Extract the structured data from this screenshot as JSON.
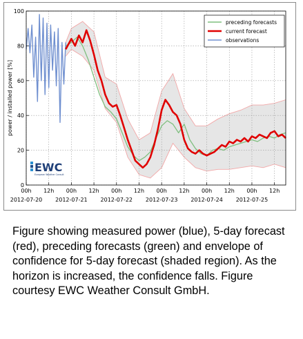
{
  "chart_data": {
    "type": "line",
    "ylabel": "power / installed power [%]",
    "ylim": [
      0,
      100
    ],
    "yticks": [
      0,
      20,
      40,
      60,
      80,
      100
    ],
    "xlim": [
      "2012-07-20T00:00",
      "2012-07-25T18:00"
    ],
    "xticks": [
      {
        "t": "2012-07-20T00:00",
        "label": "00h"
      },
      {
        "t": "2012-07-20T12:00",
        "label": "12h"
      },
      {
        "t": "2012-07-21T00:00",
        "label": "00h"
      },
      {
        "t": "2012-07-21T12:00",
        "label": "12h"
      },
      {
        "t": "2012-07-22T00:00",
        "label": "00h"
      },
      {
        "t": "2012-07-22T12:00",
        "label": "12h"
      },
      {
        "t": "2012-07-23T00:00",
        "label": "00h"
      },
      {
        "t": "2012-07-23T12:00",
        "label": "12h"
      },
      {
        "t": "2012-07-24T00:00",
        "label": "00h"
      },
      {
        "t": "2012-07-24T12:00",
        "label": "12h"
      },
      {
        "t": "2012-07-25T00:00",
        "label": "00h"
      },
      {
        "t": "2012-07-25T12:00",
        "label": "12h"
      }
    ],
    "date_labels": [
      {
        "t": "2012-07-20T00:00",
        "label": "2012-07-20"
      },
      {
        "t": "2012-07-21T00:00",
        "label": "2012-07-21"
      },
      {
        "t": "2012-07-22T00:00",
        "label": "2012-07-22"
      },
      {
        "t": "2012-07-23T00:00",
        "label": "2012-07-23"
      },
      {
        "t": "2012-07-24T00:00",
        "label": "2012-07-24"
      },
      {
        "t": "2012-07-25T00:00",
        "label": "2012-07-25"
      }
    ],
    "grid": true,
    "legend_position": "top-right",
    "logo_text": "EWC",
    "logo_subtext": "European Weather Consult",
    "series": [
      {
        "name": "preceding forecasts",
        "color": "#7fbf7f",
        "x": [
          "2012-07-20T21:00",
          "2012-07-21T00:00",
          "2012-07-21T03:00",
          "2012-07-21T06:00",
          "2012-07-21T09:00",
          "2012-07-21T12:00",
          "2012-07-21T15:00",
          "2012-07-21T18:00",
          "2012-07-21T21:00",
          "2012-07-22T00:00",
          "2012-07-22T03:00",
          "2012-07-22T06:00",
          "2012-07-22T09:00",
          "2012-07-22T12:00",
          "2012-07-22T15:00",
          "2012-07-22T18:00",
          "2012-07-22T21:00",
          "2012-07-23T00:00",
          "2012-07-23T03:00",
          "2012-07-23T06:00",
          "2012-07-23T09:00",
          "2012-07-23T12:00",
          "2012-07-23T15:00",
          "2012-07-23T18:00",
          "2012-07-23T21:00",
          "2012-07-24T00:00",
          "2012-07-24T03:00",
          "2012-07-24T06:00",
          "2012-07-24T09:00",
          "2012-07-24T12:00",
          "2012-07-24T15:00",
          "2012-07-24T18:00",
          "2012-07-24T21:00",
          "2012-07-25T00:00",
          "2012-07-25T03:00",
          "2012-07-25T06:00",
          "2012-07-25T09:00",
          "2012-07-25T12:00",
          "2012-07-25T15:00",
          "2012-07-25T18:00"
        ],
        "values": [
          80,
          82,
          85,
          80,
          72,
          62,
          52,
          45,
          42,
          38,
          30,
          22,
          17,
          14,
          16,
          19,
          27,
          34,
          37,
          35,
          30,
          35,
          26,
          21,
          18,
          17,
          20,
          21,
          20,
          22,
          23,
          24,
          25,
          26,
          25,
          27,
          28,
          27,
          29,
          30
        ]
      },
      {
        "name": "current forecast",
        "color": "#e00000",
        "x": [
          "2012-07-20T21:00",
          "2012-07-21T00:00",
          "2012-07-21T02:00",
          "2012-07-21T04:00",
          "2012-07-21T06:00",
          "2012-07-21T08:00",
          "2012-07-21T10:00",
          "2012-07-21T12:00",
          "2012-07-21T14:00",
          "2012-07-21T16:00",
          "2012-07-21T18:00",
          "2012-07-21T20:00",
          "2012-07-21T22:00",
          "2012-07-22T00:00",
          "2012-07-22T02:00",
          "2012-07-22T04:00",
          "2012-07-22T06:00",
          "2012-07-22T08:00",
          "2012-07-22T10:00",
          "2012-07-22T12:00",
          "2012-07-22T14:00",
          "2012-07-22T16:00",
          "2012-07-22T18:00",
          "2012-07-22T20:00",
          "2012-07-22T22:00",
          "2012-07-23T00:00",
          "2012-07-23T02:00",
          "2012-07-23T04:00",
          "2012-07-23T06:00",
          "2012-07-23T08:00",
          "2012-07-23T10:00",
          "2012-07-23T12:00",
          "2012-07-23T14:00",
          "2012-07-23T16:00",
          "2012-07-23T18:00",
          "2012-07-23T20:00",
          "2012-07-23T22:00",
          "2012-07-24T00:00",
          "2012-07-24T02:00",
          "2012-07-24T04:00",
          "2012-07-24T06:00",
          "2012-07-24T08:00",
          "2012-07-24T10:00",
          "2012-07-24T12:00",
          "2012-07-24T14:00",
          "2012-07-24T16:00",
          "2012-07-24T18:00",
          "2012-07-24T20:00",
          "2012-07-24T22:00",
          "2012-07-25T00:00",
          "2012-07-25T02:00",
          "2012-07-25T04:00",
          "2012-07-25T06:00",
          "2012-07-25T08:00",
          "2012-07-25T10:00",
          "2012-07-25T12:00",
          "2012-07-25T14:00",
          "2012-07-25T16:00",
          "2012-07-25T18:00"
        ],
        "values": [
          78,
          84,
          80,
          86,
          82,
          89,
          83,
          75,
          66,
          60,
          52,
          47,
          45,
          46,
          40,
          33,
          26,
          20,
          14,
          12,
          10,
          12,
          16,
          23,
          32,
          43,
          49,
          46,
          42,
          40,
          35,
          26,
          21,
          19,
          18,
          20,
          18,
          17,
          18,
          19,
          21,
          23,
          22,
          25,
          24,
          26,
          25,
          27,
          25,
          28,
          27,
          29,
          28,
          27,
          30,
          31,
          28,
          29,
          27
        ]
      },
      {
        "name": "observations",
        "color": "#7090d0",
        "x": [
          "2012-07-20T00:00",
          "2012-07-20T01:00",
          "2012-07-20T02:00",
          "2012-07-20T03:00",
          "2012-07-20T04:00",
          "2012-07-20T05:00",
          "2012-07-20T06:00",
          "2012-07-20T07:00",
          "2012-07-20T08:00",
          "2012-07-20T09:00",
          "2012-07-20T10:00",
          "2012-07-20T11:00",
          "2012-07-20T12:00",
          "2012-07-20T13:00",
          "2012-07-20T14:00",
          "2012-07-20T15:00",
          "2012-07-20T16:00",
          "2012-07-20T17:00",
          "2012-07-20T18:00",
          "2012-07-20T19:00",
          "2012-07-20T20:00",
          "2012-07-20T21:00"
        ],
        "values": [
          78,
          90,
          76,
          92,
          62,
          85,
          48,
          98,
          60,
          96,
          52,
          93,
          56,
          92,
          66,
          88,
          57,
          90,
          36,
          82,
          58,
          82
        ]
      }
    ],
    "confidence_band": {
      "x": [
        "2012-07-20T21:00",
        "2012-07-21T00:00",
        "2012-07-21T06:00",
        "2012-07-21T12:00",
        "2012-07-21T18:00",
        "2012-07-22T00:00",
        "2012-07-22T06:00",
        "2012-07-22T12:00",
        "2012-07-22T18:00",
        "2012-07-23T00:00",
        "2012-07-23T06:00",
        "2012-07-23T12:00",
        "2012-07-23T18:00",
        "2012-07-24T00:00",
        "2012-07-24T06:00",
        "2012-07-24T12:00",
        "2012-07-24T18:00",
        "2012-07-25T00:00",
        "2012-07-25T06:00",
        "2012-07-25T12:00",
        "2012-07-25T18:00"
      ],
      "lower": [
        74,
        78,
        74,
        66,
        44,
        36,
        16,
        6,
        4,
        10,
        24,
        16,
        10,
        8,
        9,
        9,
        10,
        11,
        10,
        12,
        10
      ],
      "upper": [
        82,
        90,
        94,
        88,
        62,
        58,
        38,
        26,
        30,
        54,
        64,
        44,
        34,
        34,
        38,
        41,
        43,
        46,
        46,
        47,
        49
      ]
    }
  },
  "caption": "Figure showing measured power (blue), 5-day forecast (red), preceding forecasts (green) and envelope of confidence for 5-day forecast (shaded region). As the horizon is increased, the confidence falls. Figure courtesy EWC Weather Consult GmbH."
}
